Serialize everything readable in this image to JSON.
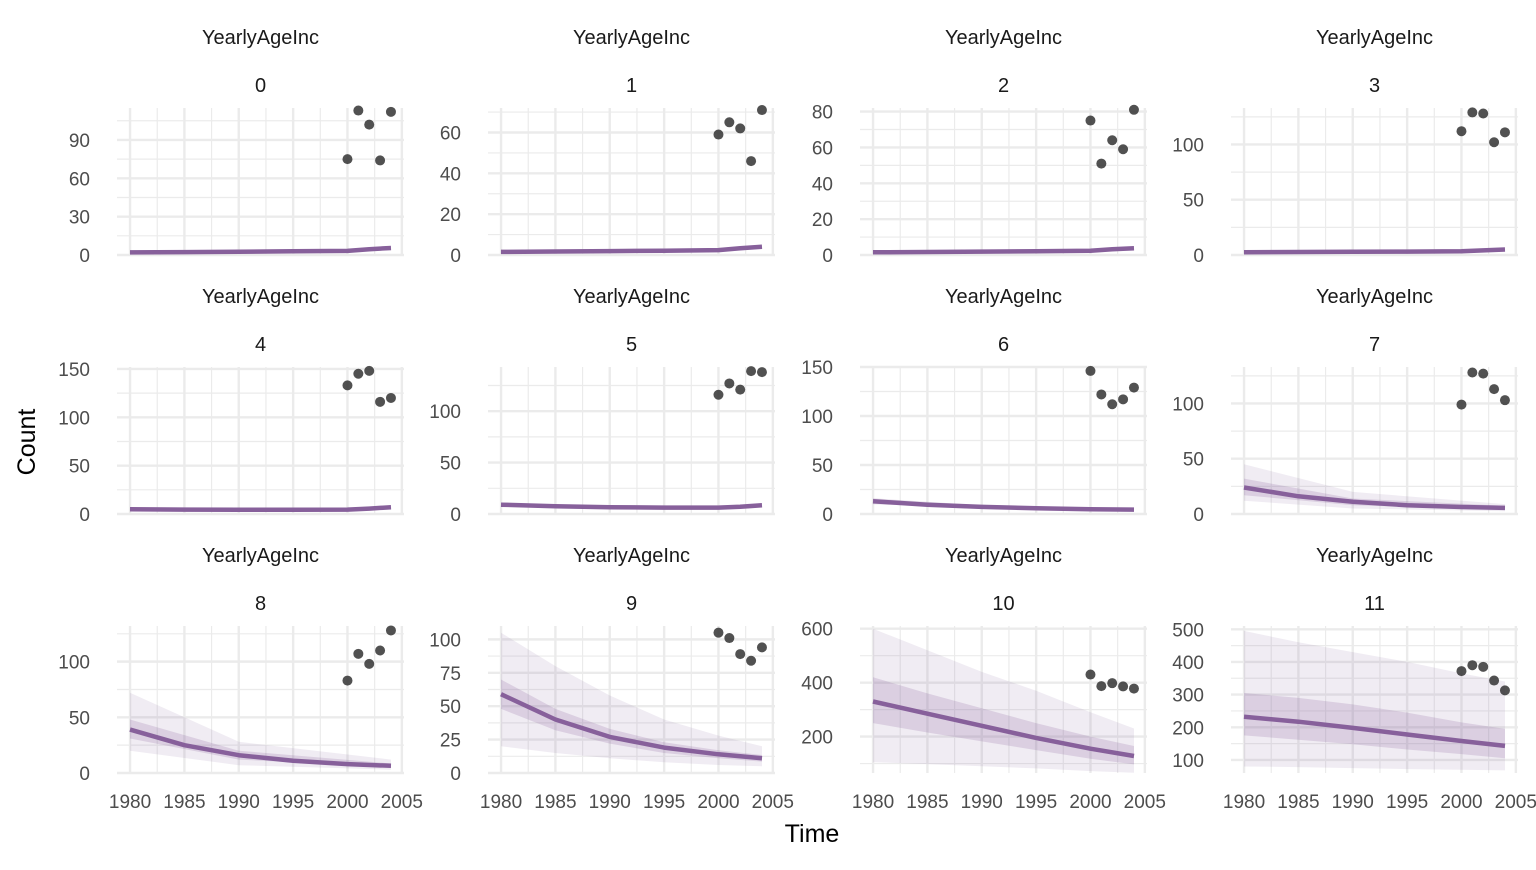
{
  "figure": {
    "xlabel": "Time",
    "ylabel": "Count"
  },
  "colors": {
    "line": "#87609B",
    "band": "#87609B",
    "point": "#333333",
    "grid": "#EBEBEB",
    "text": "#4D4D4D"
  },
  "chart_data": [
    {
      "type": "line",
      "title": "YearlyAgeInc",
      "subtitle": "0",
      "xlabel": "Time",
      "ylabel": "Count",
      "xlim": [
        1980,
        2004
      ],
      "ylim": [
        0,
        115
      ],
      "xticks": [
        1980,
        1985,
        1990,
        1995,
        2000,
        2005
      ],
      "yticks": [
        0,
        30,
        60,
        90
      ],
      "median": {
        "x": [
          1980,
          1985,
          1990,
          1995,
          2000,
          2002,
          2004
        ],
        "y": [
          2,
          2.3,
          2.6,
          2.9,
          3.2,
          4.5,
          5.5
        ]
      },
      "inner_band": null,
      "outer_band": null,
      "points": {
        "x": [
          2000,
          2001,
          2002,
          2003,
          2004
        ],
        "y": [
          75,
          113,
          102,
          74,
          112
        ]
      }
    },
    {
      "type": "line",
      "title": "YearlyAgeInc",
      "subtitle": "1",
      "xlabel": "Time",
      "ylabel": "Count",
      "xlim": [
        1980,
        2004
      ],
      "ylim": [
        0,
        72
      ],
      "xticks": [
        1980,
        1985,
        1990,
        1995,
        2000,
        2005
      ],
      "yticks": [
        0,
        20,
        40,
        60
      ],
      "median": {
        "x": [
          1980,
          1985,
          1990,
          1995,
          2000,
          2002,
          2004
        ],
        "y": [
          1.5,
          1.7,
          1.9,
          2.1,
          2.4,
          3.3,
          4
        ]
      },
      "inner_band": null,
      "outer_band": null,
      "points": {
        "x": [
          2000,
          2001,
          2002,
          2003,
          2004
        ],
        "y": [
          59,
          65,
          62,
          46,
          71
        ]
      }
    },
    {
      "type": "line",
      "title": "YearlyAgeInc",
      "subtitle": "2",
      "xlabel": "Time",
      "ylabel": "Count",
      "xlim": [
        1980,
        2004
      ],
      "ylim": [
        0,
        82
      ],
      "xticks": [
        1980,
        1985,
        1990,
        1995,
        2000,
        2005
      ],
      "yticks": [
        0,
        20,
        40,
        60,
        80
      ],
      "median": {
        "x": [
          1980,
          1985,
          1990,
          1995,
          2000,
          2002,
          2004
        ],
        "y": [
          1.5,
          1.7,
          1.9,
          2.1,
          2.4,
          3.2,
          3.8
        ]
      },
      "inner_band": null,
      "outer_band": null,
      "points": {
        "x": [
          2000,
          2001,
          2002,
          2003,
          2004
        ],
        "y": [
          75,
          51,
          64,
          59,
          81
        ]
      }
    },
    {
      "type": "line",
      "title": "YearlyAgeInc",
      "subtitle": "3",
      "xlabel": "Time",
      "ylabel": "Count",
      "xlim": [
        1980,
        2004
      ],
      "ylim": [
        0,
        133
      ],
      "xticks": [
        1980,
        1985,
        1990,
        1995,
        2000,
        2005
      ],
      "yticks": [
        0,
        50,
        100
      ],
      "median": {
        "x": [
          1980,
          1985,
          1990,
          1995,
          2000,
          2002,
          2004
        ],
        "y": [
          2.5,
          2.7,
          2.9,
          3.1,
          3.4,
          4.2,
          5
        ]
      },
      "inner_band": null,
      "outer_band": null,
      "points": {
        "x": [
          2000,
          2001,
          2002,
          2003,
          2004
        ],
        "y": [
          112,
          129,
          128,
          102,
          111
        ]
      }
    },
    {
      "type": "line",
      "title": "YearlyAgeInc",
      "subtitle": "4",
      "xlabel": "Time",
      "ylabel": "Count",
      "xlim": [
        1980,
        2004
      ],
      "ylim": [
        0,
        152
      ],
      "xticks": [
        1980,
        1985,
        1990,
        1995,
        2000,
        2005
      ],
      "yticks": [
        0,
        50,
        100,
        150
      ],
      "median": {
        "x": [
          1980,
          1985,
          1990,
          1995,
          2000,
          2002,
          2004
        ],
        "y": [
          5,
          4.6,
          4.4,
          4.3,
          4.5,
          5.6,
          7
        ]
      },
      "inner_band": null,
      "outer_band": null,
      "points": {
        "x": [
          2000,
          2001,
          2002,
          2003,
          2004
        ],
        "y": [
          133,
          145,
          148,
          116,
          120
        ]
      }
    },
    {
      "type": "line",
      "title": "YearlyAgeInc",
      "subtitle": "5",
      "xlabel": "Time",
      "ylabel": "Count",
      "xlim": [
        1980,
        2004
      ],
      "ylim": [
        0,
        143
      ],
      "xticks": [
        1980,
        1985,
        1990,
        1995,
        2000,
        2005
      ],
      "yticks": [
        0,
        50,
        100
      ],
      "median": {
        "x": [
          1980,
          1985,
          1990,
          1995,
          2000,
          2002,
          2004
        ],
        "y": [
          9,
          7.5,
          6.6,
          6.2,
          6.2,
          7,
          8.5
        ]
      },
      "inner_band": null,
      "outer_band": null,
      "points": {
        "x": [
          2000,
          2001,
          2002,
          2003,
          2004
        ],
        "y": [
          116,
          127,
          121,
          139,
          138
        ]
      }
    },
    {
      "type": "line",
      "title": "YearlyAgeInc",
      "subtitle": "6",
      "xlabel": "Time",
      "ylabel": "Count",
      "xlim": [
        1980,
        2004
      ],
      "ylim": [
        0,
        150
      ],
      "xticks": [
        1980,
        1985,
        1990,
        1995,
        2000,
        2005
      ],
      "yticks": [
        0,
        50,
        100,
        150
      ],
      "median": {
        "x": [
          1980,
          1985,
          1990,
          1995,
          2000,
          2004
        ],
        "y": [
          13,
          9.5,
          7.2,
          5.8,
          4.8,
          4.5
        ]
      },
      "inner_band": {
        "x": [
          1980,
          1990,
          2004
        ],
        "lower": [
          10,
          6,
          3.5
        ],
        "upper": [
          16,
          9,
          6
        ]
      },
      "outer_band": null,
      "points": {
        "x": [
          2000,
          2001,
          2002,
          2003,
          2004
        ],
        "y": [
          146,
          122,
          112,
          117,
          129
        ]
      }
    },
    {
      "type": "line",
      "title": "YearlyAgeInc",
      "subtitle": "7",
      "xlabel": "Time",
      "ylabel": "Count",
      "xlim": [
        1980,
        2004
      ],
      "ylim": [
        0,
        133
      ],
      "xticks": [
        1980,
        1985,
        1990,
        1995,
        2000,
        2005
      ],
      "yticks": [
        0,
        50,
        100
      ],
      "median": {
        "x": [
          1980,
          1985,
          1990,
          1995,
          2000,
          2004
        ],
        "y": [
          24,
          16,
          11,
          8,
          6.3,
          5.5
        ]
      },
      "inner_band": {
        "x": [
          1980,
          1990,
          2004
        ],
        "lower": [
          17,
          8,
          4
        ],
        "upper": [
          32,
          14,
          7.5
        ]
      },
      "outer_band": {
        "x": [
          1980,
          1990,
          2004
        ],
        "lower": [
          12,
          5,
          2.5
        ],
        "upper": [
          45,
          20,
          9
        ]
      },
      "points": {
        "x": [
          2000,
          2001,
          2002,
          2003,
          2004
        ],
        "y": [
          99,
          128,
          127,
          113,
          103
        ]
      }
    },
    {
      "type": "line",
      "title": "YearlyAgeInc",
      "subtitle": "8",
      "xlabel": "Time",
      "ylabel": "Count",
      "xlim": [
        1980,
        2004
      ],
      "ylim": [
        0,
        132
      ],
      "xticks": [
        1980,
        1985,
        1990,
        1995,
        2000,
        2005
      ],
      "yticks": [
        0,
        50,
        100
      ],
      "median": {
        "x": [
          1980,
          1985,
          1990,
          1995,
          2000,
          2004
        ],
        "y": [
          39,
          25,
          16,
          11,
          8,
          6.5
        ]
      },
      "inner_band": {
        "x": [
          1980,
          1990,
          2004
        ],
        "lower": [
          31,
          12,
          5
        ],
        "upper": [
          48,
          20,
          8.5
        ]
      },
      "outer_band": {
        "x": [
          1980,
          1990,
          2004
        ],
        "lower": [
          20,
          7,
          3
        ],
        "upper": [
          72,
          28,
          12
        ]
      },
      "points": {
        "x": [
          2000,
          2001,
          2002,
          2003,
          2004
        ],
        "y": [
          83,
          107,
          98,
          110,
          128
        ]
      }
    },
    {
      "type": "line",
      "title": "YearlyAgeInc",
      "subtitle": "9",
      "xlabel": "Time",
      "ylabel": "Count",
      "xlim": [
        1980,
        2004
      ],
      "ylim": [
        0,
        110
      ],
      "xticks": [
        1980,
        1985,
        1990,
        1995,
        2000,
        2005
      ],
      "yticks": [
        0,
        25,
        50,
        75,
        100
      ],
      "median": {
        "x": [
          1980,
          1985,
          1990,
          1995,
          2000,
          2004
        ],
        "y": [
          59,
          40,
          27,
          19,
          14,
          11
        ]
      },
      "inner_band": {
        "x": [
          1980,
          1985,
          1990,
          1995,
          2000,
          2004
        ],
        "lower": [
          48,
          32,
          22,
          15,
          11,
          8.5
        ],
        "upper": [
          70,
          48,
          33,
          23,
          17,
          13.5
        ]
      },
      "outer_band": {
        "x": [
          1980,
          1985,
          1990,
          1995,
          2000,
          2004
        ],
        "lower": [
          20,
          15,
          11,
          8,
          6,
          5
        ],
        "upper": [
          105,
          80,
          58,
          40,
          28,
          20
        ]
      },
      "points": {
        "x": [
          2000,
          2001,
          2002,
          2003,
          2004
        ],
        "y": [
          105,
          101,
          89,
          84,
          94
        ]
      }
    },
    {
      "type": "line",
      "title": "YearlyAgeInc",
      "subtitle": "10",
      "xlabel": "Time",
      "ylabel": "Count",
      "xlim": [
        1980,
        2004
      ],
      "ylim": [
        65,
        610
      ],
      "xticks": [
        1980,
        1985,
        1990,
        1995,
        2000,
        2005
      ],
      "yticks": [
        200,
        400,
        600
      ],
      "median": {
        "x": [
          1980,
          1985,
          1990,
          1995,
          2000,
          2004
        ],
        "y": [
          330,
          285,
          240,
          195,
          155,
          128
        ]
      },
      "inner_band": {
        "x": [
          1980,
          1985,
          1990,
          1995,
          2000,
          2004
        ],
        "lower": [
          250,
          215,
          182,
          150,
          118,
          97
        ],
        "upper": [
          420,
          360,
          305,
          250,
          200,
          165
        ]
      },
      "outer_band": {
        "x": [
          1980,
          1985,
          1990,
          1995,
          2000,
          2004
        ],
        "lower": [
          105,
          98,
          90,
          82,
          72,
          66
        ],
        "upper": [
          600,
          520,
          440,
          370,
          290,
          230
        ]
      },
      "points": {
        "x": [
          2000,
          2001,
          2002,
          2003,
          2004
        ],
        "y": [
          430,
          387,
          398,
          386,
          378
        ]
      }
    },
    {
      "type": "line",
      "title": "YearlyAgeInc",
      "subtitle": "11",
      "xlabel": "Time",
      "ylabel": "Count",
      "xlim": [
        1980,
        2004
      ],
      "ylim": [
        60,
        510
      ],
      "xticks": [
        1980,
        1985,
        1990,
        1995,
        2000,
        2005
      ],
      "yticks": [
        100,
        200,
        300,
        400,
        500
      ],
      "median": {
        "x": [
          1980,
          1985,
          1990,
          1995,
          2000,
          2004
        ],
        "y": [
          232,
          217,
          198,
          178,
          158,
          143
        ]
      },
      "inner_band": {
        "x": [
          1980,
          1985,
          1990,
          1995,
          2000,
          2004
        ],
        "lower": [
          175,
          162,
          148,
          132,
          118,
          105
        ],
        "upper": [
          305,
          290,
          270,
          245,
          215,
          195
        ]
      },
      "outer_band": {
        "x": [
          1980,
          1985,
          1990,
          1995,
          2000,
          2004
        ],
        "lower": [
          80,
          78,
          75,
          72,
          70,
          68
        ],
        "upper": [
          495,
          460,
          430,
          400,
          365,
          340
        ]
      },
      "points": {
        "x": [
          2000,
          2001,
          2002,
          2003,
          2004
        ],
        "y": [
          372,
          390,
          385,
          343,
          313
        ]
      }
    }
  ]
}
